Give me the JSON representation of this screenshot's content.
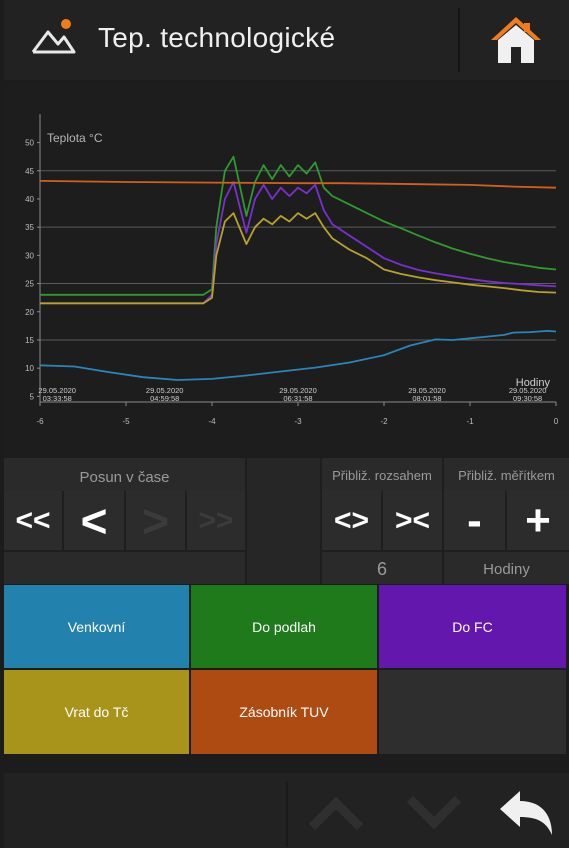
{
  "header": {
    "title": "Tep. technologické"
  },
  "chart_data": {
    "type": "line",
    "ylabel": "Teplota °C",
    "xlabel": "Hodiny",
    "xlim": [
      -6,
      0
    ],
    "ylim": [
      4,
      54
    ],
    "x_ticks": [
      "-6",
      "-5",
      "-4",
      "-3",
      "-2",
      "-1",
      "0"
    ],
    "y_ticks": [
      "5",
      "10",
      "15",
      "20",
      "25",
      "30",
      "35",
      "40",
      "45",
      "50"
    ],
    "gridlines_y": [
      15,
      25,
      35,
      45
    ],
    "time_labels": [
      {
        "x": -5.8,
        "date": "29.05.2020",
        "time": "03:33:58"
      },
      {
        "x": -4.55,
        "date": "29.05.2020",
        "time": "04:59:58"
      },
      {
        "x": -3.0,
        "date": "29.05.2020",
        "time": "06:31:58"
      },
      {
        "x": -1.5,
        "date": "29.05.2020",
        "time": "08:01:58"
      },
      {
        "x": -0.33,
        "date": "29.05.2020",
        "time": "09:30:58"
      }
    ],
    "series": [
      {
        "name": "Venkovní",
        "color": "#2a86b8",
        "x": [
          -6,
          -5.6,
          -5.2,
          -4.8,
          -4.4,
          -4.0,
          -3.6,
          -3.2,
          -2.8,
          -2.4,
          -2.0,
          -1.7,
          -1.4,
          -1.2,
          -1.0,
          -0.8,
          -0.6,
          -0.5,
          -0.3,
          -0.1,
          0
        ],
        "y": [
          10.5,
          10.3,
          9.3,
          8.4,
          7.9,
          8.1,
          8.7,
          9.4,
          10.1,
          11.0,
          12.3,
          14.0,
          15.1,
          15.0,
          15.3,
          15.6,
          15.9,
          16.3,
          16.4,
          16.6,
          16.5
        ]
      },
      {
        "name": "Do podlah",
        "color": "#2f9a2f",
        "x": [
          -6,
          -5,
          -4.1,
          -4.0,
          -3.95,
          -3.85,
          -3.75,
          -3.6,
          -3.5,
          -3.4,
          -3.3,
          -3.2,
          -3.1,
          -3.0,
          -2.9,
          -2.8,
          -2.7,
          -2.6,
          -2.4,
          -2.2,
          -2.0,
          -1.8,
          -1.6,
          -1.4,
          -1.2,
          -1.0,
          -0.8,
          -0.6,
          -0.4,
          -0.2,
          0
        ],
        "y": [
          23,
          23,
          23,
          24,
          35,
          45,
          47.5,
          37,
          43,
          46,
          43.5,
          46,
          44,
          46,
          44.5,
          46.5,
          42,
          40.5,
          39,
          37.5,
          36,
          34.8,
          33.5,
          32.3,
          31.2,
          30.3,
          29.5,
          28.8,
          28.3,
          27.8,
          27.5
        ]
      },
      {
        "name": "Do FC",
        "color": "#7a2fd0",
        "x": [
          -6,
          -5,
          -4.1,
          -4.0,
          -3.95,
          -3.85,
          -3.75,
          -3.6,
          -3.5,
          -3.4,
          -3.3,
          -3.2,
          -3.1,
          -3.0,
          -2.9,
          -2.8,
          -2.7,
          -2.6,
          -2.4,
          -2.2,
          -2.0,
          -1.8,
          -1.6,
          -1.4,
          -1.2,
          -1.0,
          -0.8,
          -0.6,
          -0.4,
          -0.2,
          0
        ],
        "y": [
          21.5,
          21.5,
          21.5,
          23,
          32,
          40,
          43,
          34,
          40,
          42.5,
          40,
          42,
          40.5,
          42,
          41,
          42.5,
          38,
          35.5,
          33.5,
          31.5,
          29.5,
          28.3,
          27.4,
          26.8,
          26.3,
          25.8,
          25.4,
          25.1,
          24.9,
          24.7,
          24.5
        ]
      },
      {
        "name": "Vrat do Tč",
        "color": "#b8a22a",
        "x": [
          -6,
          -5,
          -4.1,
          -4.0,
          -3.95,
          -3.85,
          -3.75,
          -3.6,
          -3.5,
          -3.4,
          -3.3,
          -3.2,
          -3.1,
          -3.0,
          -2.9,
          -2.8,
          -2.7,
          -2.6,
          -2.4,
          -2.2,
          -2.0,
          -1.8,
          -1.6,
          -1.4,
          -1.2,
          -1.0,
          -0.8,
          -0.6,
          -0.4,
          -0.2,
          0
        ],
        "y": [
          21.5,
          21.5,
          21.5,
          22.5,
          30,
          36,
          37.5,
          32,
          35,
          36.5,
          35.5,
          37,
          36,
          37.5,
          36.5,
          37.5,
          35,
          33,
          31,
          29.5,
          27.5,
          26.7,
          26.1,
          25.6,
          25.2,
          24.8,
          24.5,
          24.2,
          23.8,
          23.5,
          23.4
        ]
      },
      {
        "name": "Zásobník TUV",
        "color": "#d2601c",
        "x": [
          -6,
          -5,
          -4,
          -3,
          -2.5,
          -2,
          -1.5,
          -1.0,
          -0.5,
          0
        ],
        "y": [
          43.2,
          43,
          42.9,
          42.8,
          42.8,
          42.7,
          42.6,
          42.5,
          42.2,
          42.0
        ]
      }
    ]
  },
  "controls": {
    "shift_label": "Posun v čase",
    "range_label": "Přibliž. rozsahem",
    "scale_label": "Přibliž. měřítkem",
    "btn_fast_back": "<<",
    "btn_back": "<",
    "btn_fwd": ">",
    "btn_fast_fwd": ">>",
    "btn_range_expand": "<>",
    "btn_range_shrink": "><",
    "btn_minus": "-",
    "btn_plus": "+",
    "range_value": "6",
    "unit_label": "Hodiny"
  },
  "legend": [
    {
      "label": "Venkovní",
      "color": "#2281ad"
    },
    {
      "label": "Do podlah",
      "color": "#1e7a1a"
    },
    {
      "label": "Do FC",
      "color": "#6417ad"
    },
    {
      "label": "Vrat do Tč",
      "color": "#a8931b"
    },
    {
      "label": "Zásobník TUV",
      "color": "#ae4b12"
    }
  ],
  "footer": {
    "icons": [
      "chevron-up-icon",
      "chevron-down-icon",
      "back-arrow-icon"
    ]
  }
}
